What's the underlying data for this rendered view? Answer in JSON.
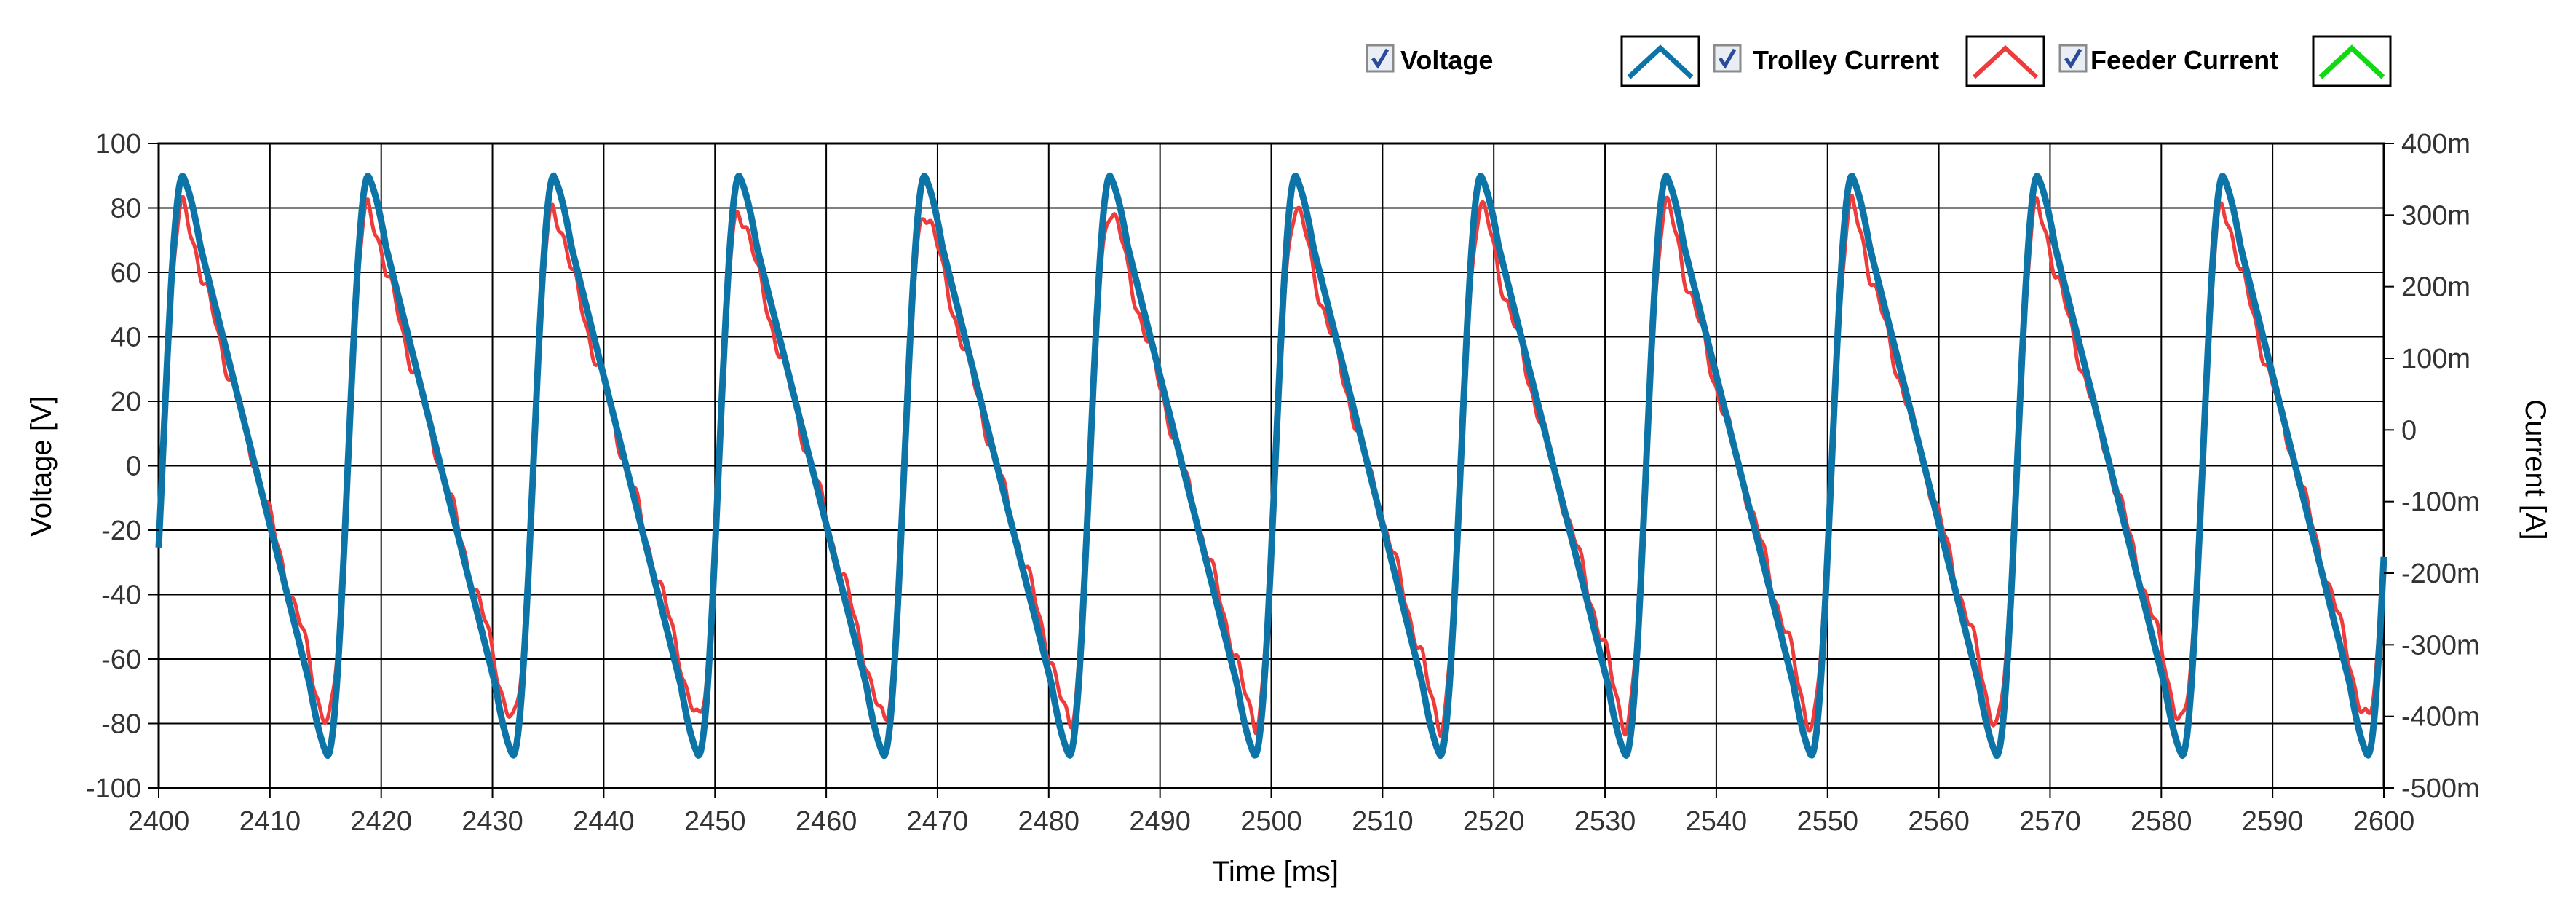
{
  "legend": {
    "voltage_label": "Voltage",
    "trolley_label": "Trolley Current",
    "feeder_label": "Feeder Current",
    "voltage_checked": true,
    "trolley_checked": true,
    "feeder_checked": true
  },
  "colors": {
    "voltage": "#0d74a8",
    "trolley": "#ee3b3b",
    "feeder": "#11d911",
    "grid": "#000000",
    "axis_text": "#333333"
  },
  "chart_data": {
    "type": "line",
    "xlabel": "Time [ms]",
    "ylabel": "Voltage [V]",
    "y2label": "Current [A]",
    "xlim": [
      2400,
      2600
    ],
    "ylim": [
      -100,
      100
    ],
    "y2lim": [
      -500,
      400
    ],
    "x_ticks": [
      "2400",
      "2410",
      "2420",
      "2430",
      "2440",
      "2450",
      "2460",
      "2470",
      "2480",
      "2490",
      "2500",
      "2510",
      "2520",
      "2530",
      "2540",
      "2550",
      "2560",
      "2570",
      "2580",
      "2590",
      "2600"
    ],
    "y_ticks": [
      "100",
      "80",
      "60",
      "40",
      "20",
      "0",
      "-20",
      "-40",
      "-60",
      "-80",
      "-100"
    ],
    "y2_ticks": [
      "400m",
      "300m",
      "200m",
      "100m",
      "0",
      "-100m",
      "-200m",
      "-300m",
      "-400m",
      "-500m"
    ],
    "grid": true,
    "legend_position": "top-right",
    "period_ms": 16.67,
    "phase_ms": 2398.5,
    "series": [
      {
        "name": "Voltage",
        "axis": "y",
        "waveform": "sawtooth",
        "amplitude": 90,
        "min": -90,
        "max": 90
      },
      {
        "name": "Trolley Current",
        "axis": "y",
        "waveform": "sawtooth",
        "amplitude": 80,
        "min": -80,
        "max": 80
      }
    ]
  }
}
